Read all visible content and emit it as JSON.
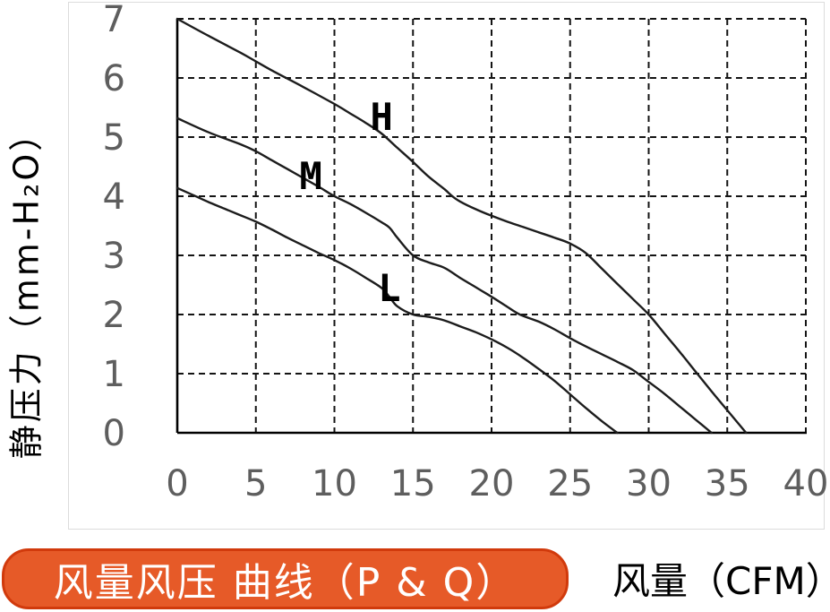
{
  "page": {
    "background": "#ffffff"
  },
  "colors": {
    "badge_fill": "#E65A28",
    "badge_border": "#D13A0C",
    "badge_text": "#ffffff",
    "grid_line": "#141414",
    "axis_line": "#000000",
    "curve_line": "#1c1c1c",
    "tick_label": "#5e5e5e",
    "curve_label": "#000000",
    "panel_border": "#dcdcdc"
  },
  "badge": {
    "label": "风量风压 曲线（P & Q）"
  },
  "axis_titles": {
    "y": "静压力（mm-H₂O）",
    "x": "风量（CFM）"
  },
  "chart_data": {
    "type": "line",
    "title": "风量风压 曲线（P & Q）",
    "xlabel": "风量（CFM）",
    "ylabel": "静压力（mm-H₂O）",
    "xlim": [
      0,
      40
    ],
    "ylim": [
      0,
      7
    ],
    "x_ticks": [
      0,
      5,
      10,
      15,
      20,
      25,
      30,
      35,
      40
    ],
    "y_ticks": [
      0,
      1,
      2,
      3,
      4,
      5,
      6,
      7
    ],
    "grid": "dashed",
    "legend_position": "inline-labels",
    "series": [
      {
        "name": "H",
        "label_pos": [
          13.0,
          5.33
        ],
        "points": [
          [
            0,
            7.0
          ],
          [
            2,
            6.71
          ],
          [
            4,
            6.43
          ],
          [
            5,
            6.28
          ],
          [
            6,
            6.13
          ],
          [
            8,
            5.85
          ],
          [
            10,
            5.56
          ],
          [
            11,
            5.4
          ],
          [
            12,
            5.24
          ],
          [
            13,
            5.06
          ],
          [
            14,
            4.82
          ],
          [
            15,
            4.58
          ],
          [
            16,
            4.33
          ],
          [
            17,
            4.12
          ],
          [
            17.5,
            4.0
          ],
          [
            18,
            3.91
          ],
          [
            19,
            3.78
          ],
          [
            20,
            3.67
          ],
          [
            21,
            3.57
          ],
          [
            22,
            3.48
          ],
          [
            23,
            3.39
          ],
          [
            24,
            3.3
          ],
          [
            25,
            3.2
          ],
          [
            26,
            3.04
          ],
          [
            27,
            2.78
          ],
          [
            28,
            2.52
          ],
          [
            29,
            2.26
          ],
          [
            30,
            2.0
          ],
          [
            31,
            1.68
          ],
          [
            32,
            1.36
          ],
          [
            33,
            1.03
          ],
          [
            34,
            0.7
          ],
          [
            35,
            0.38
          ],
          [
            36.2,
            0
          ]
        ]
      },
      {
        "name": "M",
        "label_pos": [
          8.5,
          4.33
        ],
        "points": [
          [
            0,
            5.32
          ],
          [
            2,
            5.08
          ],
          [
            4,
            4.88
          ],
          [
            5,
            4.76
          ],
          [
            6,
            4.61
          ],
          [
            7,
            4.46
          ],
          [
            8,
            4.31
          ],
          [
            9,
            4.16
          ],
          [
            10,
            4.0
          ],
          [
            11,
            3.87
          ],
          [
            12,
            3.72
          ],
          [
            13,
            3.56
          ],
          [
            13.5,
            3.47
          ],
          [
            14,
            3.3
          ],
          [
            15,
            3.0
          ],
          [
            16,
            2.88
          ],
          [
            17,
            2.79
          ],
          [
            18,
            2.62
          ],
          [
            19,
            2.46
          ],
          [
            20,
            2.3
          ],
          [
            21,
            2.13
          ],
          [
            21.8,
            2.0
          ],
          [
            23,
            1.88
          ],
          [
            24,
            1.75
          ],
          [
            25,
            1.6
          ],
          [
            26,
            1.46
          ],
          [
            27,
            1.33
          ],
          [
            28,
            1.2
          ],
          [
            29,
            1.06
          ],
          [
            30,
            0.86
          ],
          [
            31,
            0.66
          ],
          [
            32,
            0.44
          ],
          [
            33,
            0.22
          ],
          [
            34,
            0
          ]
        ]
      },
      {
        "name": "L",
        "label_pos": [
          13.5,
          2.44
        ],
        "points": [
          [
            0,
            4.14
          ],
          [
            1,
            4.02
          ],
          [
            2,
            3.9
          ],
          [
            3,
            3.79
          ],
          [
            4,
            3.68
          ],
          [
            5,
            3.57
          ],
          [
            6,
            3.44
          ],
          [
            7,
            3.3
          ],
          [
            8,
            3.17
          ],
          [
            9,
            3.04
          ],
          [
            10,
            2.92
          ],
          [
            11,
            2.78
          ],
          [
            12,
            2.62
          ],
          [
            13,
            2.45
          ],
          [
            13.5,
            2.3
          ],
          [
            14,
            2.14
          ],
          [
            15,
            2.0
          ],
          [
            16,
            1.96
          ],
          [
            17,
            1.9
          ],
          [
            18,
            1.8
          ],
          [
            19,
            1.7
          ],
          [
            20,
            1.58
          ],
          [
            21,
            1.44
          ],
          [
            22,
            1.27
          ],
          [
            23,
            1.08
          ],
          [
            24,
            0.88
          ],
          [
            25,
            0.65
          ],
          [
            26,
            0.42
          ],
          [
            27,
            0.2
          ],
          [
            28,
            0
          ]
        ]
      }
    ]
  }
}
